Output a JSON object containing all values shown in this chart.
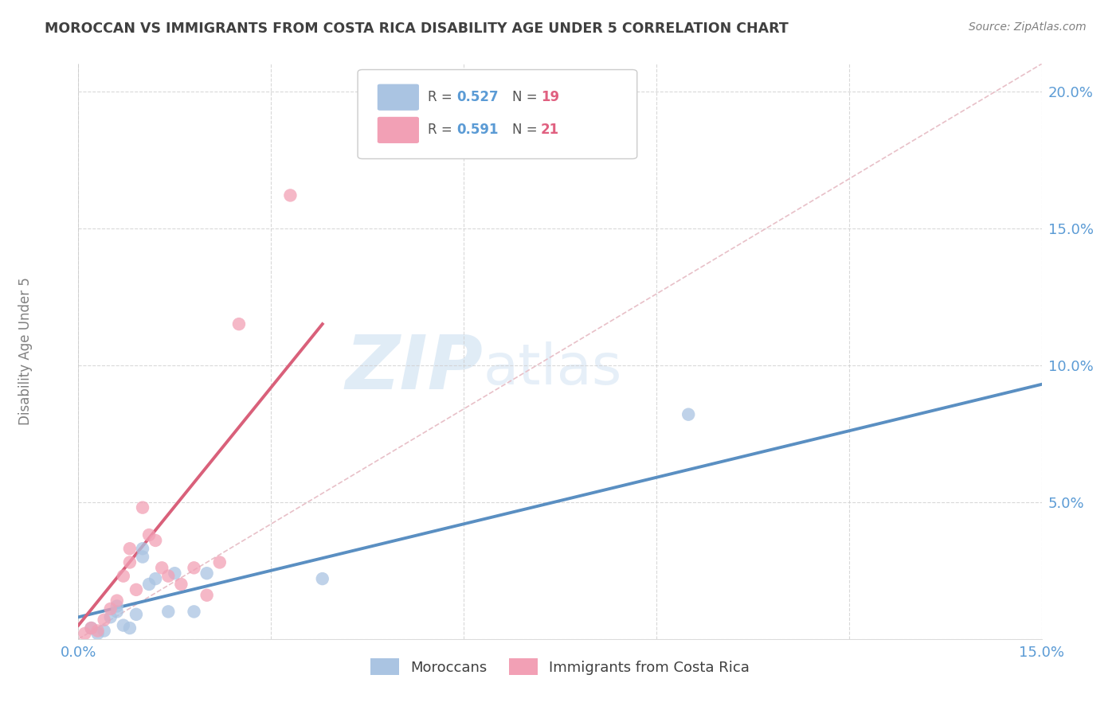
{
  "title": "MOROCCAN VS IMMIGRANTS FROM COSTA RICA DISABILITY AGE UNDER 5 CORRELATION CHART",
  "source": "Source: ZipAtlas.com",
  "ylabel": "Disability Age Under 5",
  "xlim": [
    0.0,
    0.15
  ],
  "ylim": [
    0.0,
    0.21
  ],
  "xticks": [
    0.0,
    0.03,
    0.06,
    0.09,
    0.12,
    0.15
  ],
  "xtick_labels": [
    "0.0%",
    "",
    "",
    "",
    "",
    "15.0%"
  ],
  "yticks": [
    0.0,
    0.05,
    0.1,
    0.15,
    0.2
  ],
  "ytick_labels": [
    "",
    "5.0%",
    "10.0%",
    "15.0%",
    "20.0%"
  ],
  "grid_color": "#d0d0d0",
  "background_color": "#ffffff",
  "blue_color": "#aac4e2",
  "pink_color": "#f2a0b5",
  "blue_line_color": "#5a8fc2",
  "pink_line_color": "#d9607a",
  "diag_line_color": "#e8c0c8",
  "title_color": "#404040",
  "axis_color": "#5b9bd5",
  "ylabel_color": "#808080",
  "source_color": "#808080",
  "legend_r_color": "#5b9bd5",
  "legend_n_color": "#e06080",
  "moroccans_x": [
    0.002,
    0.003,
    0.004,
    0.005,
    0.006,
    0.006,
    0.007,
    0.008,
    0.009,
    0.01,
    0.01,
    0.011,
    0.012,
    0.014,
    0.015,
    0.018,
    0.02,
    0.038,
    0.095
  ],
  "moroccans_y": [
    0.004,
    0.002,
    0.003,
    0.008,
    0.01,
    0.012,
    0.005,
    0.004,
    0.009,
    0.033,
    0.03,
    0.02,
    0.022,
    0.01,
    0.024,
    0.01,
    0.024,
    0.022,
    0.082
  ],
  "costarica_x": [
    0.001,
    0.002,
    0.003,
    0.004,
    0.005,
    0.006,
    0.007,
    0.008,
    0.008,
    0.009,
    0.01,
    0.011,
    0.012,
    0.013,
    0.014,
    0.016,
    0.018,
    0.02,
    0.022,
    0.025,
    0.033
  ],
  "costarica_y": [
    0.002,
    0.004,
    0.003,
    0.007,
    0.011,
    0.014,
    0.023,
    0.028,
    0.033,
    0.018,
    0.048,
    0.038,
    0.036,
    0.026,
    0.023,
    0.02,
    0.026,
    0.016,
    0.028,
    0.115,
    0.162
  ],
  "blue_line_x": [
    0.0,
    0.15
  ],
  "blue_line_y": [
    0.008,
    0.093
  ],
  "pink_line_x": [
    0.0,
    0.038
  ],
  "pink_line_y": [
    0.005,
    0.115
  ],
  "diag_line_x": [
    0.0,
    0.15
  ],
  "diag_line_y": [
    0.0,
    0.21
  ]
}
